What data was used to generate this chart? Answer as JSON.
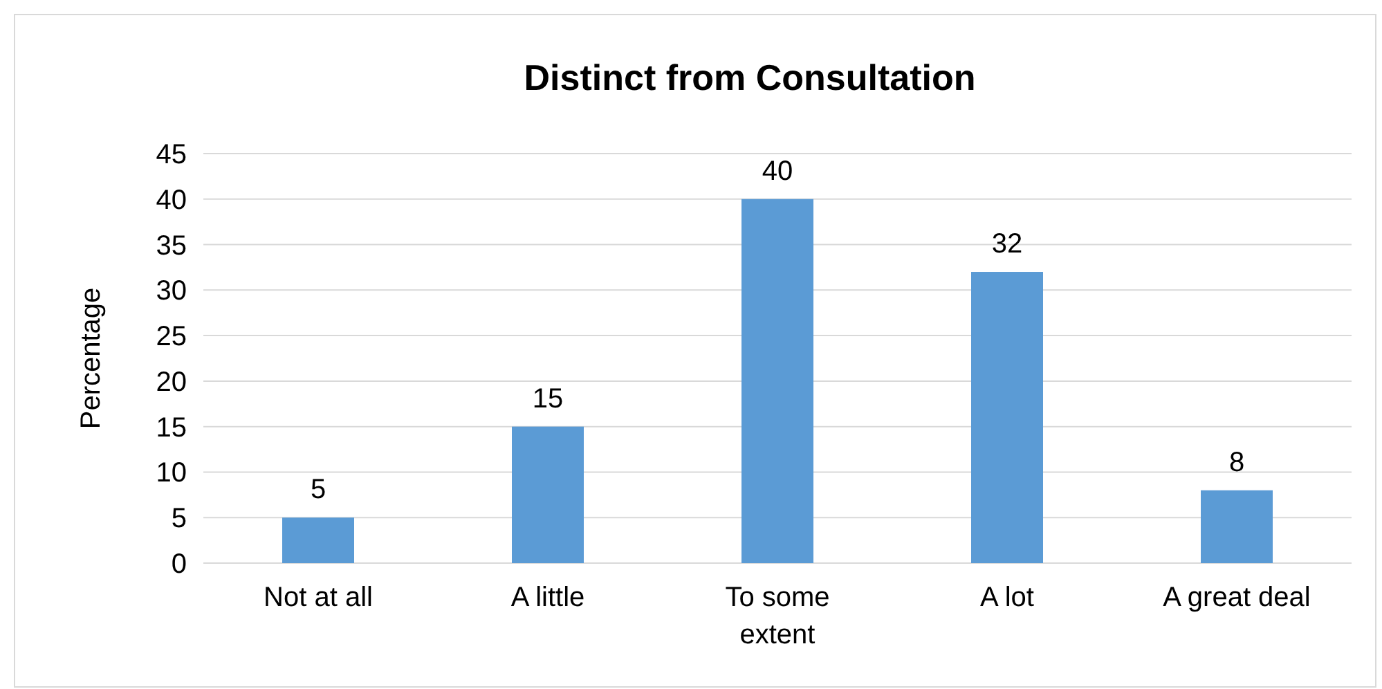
{
  "chart_data": {
    "type": "bar",
    "title": "Distinct from Consultation",
    "ylabel": "Percentage",
    "categories": [
      "Not at all",
      "A little",
      "To some extent",
      "A lot",
      "A great deal"
    ],
    "values": [
      5,
      15,
      40,
      32,
      8
    ],
    "color": "#5b9bd5",
    "ylim": [
      0,
      45
    ],
    "yticks": [
      0,
      5,
      10,
      15,
      20,
      25,
      30,
      35,
      40,
      45
    ],
    "grid": "y",
    "data_labels": true
  }
}
